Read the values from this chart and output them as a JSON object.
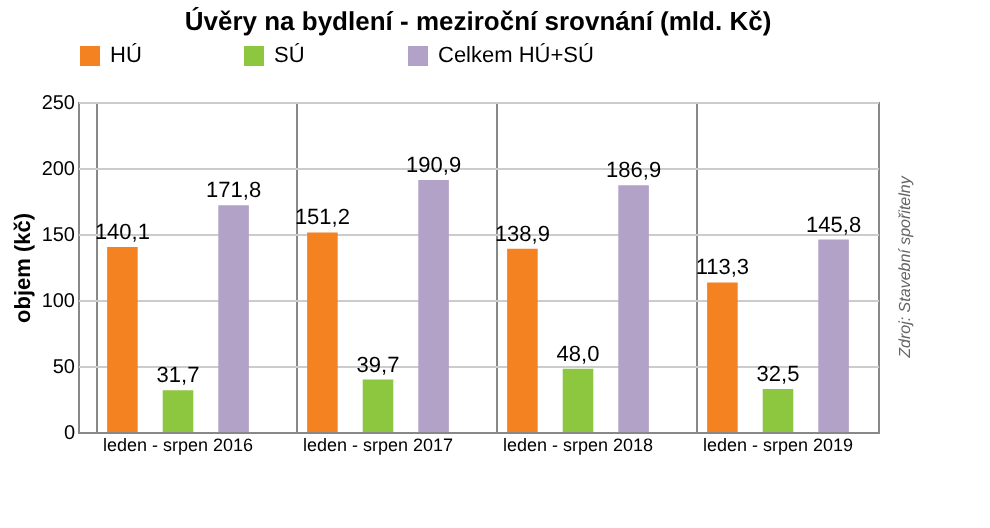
{
  "chart_data": {
    "type": "bar",
    "title": "Úvěry na bydlení - meziroční srovnání (mld. Kč)",
    "ylabel": "objem (kč)",
    "categories": [
      "leden - srpen 2016",
      "leden - srpen 2017",
      "leden - srpen 2018",
      "leden - srpen 2019"
    ],
    "series": [
      {
        "name": "HÚ",
        "color": "#f58220",
        "values": [
          140.1,
          151.2,
          138.9,
          113.3
        ]
      },
      {
        "name": "SÚ",
        "color": "#8dc63f",
        "values": [
          31.7,
          39.7,
          48.0,
          32.5
        ]
      },
      {
        "name": "Celkem HÚ+SÚ",
        "color": "#b3a2c7",
        "values": [
          171.8,
          190.9,
          186.9,
          145.8
        ]
      }
    ],
    "value_labels": [
      [
        "140,1",
        "151,2",
        "138,9",
        "113,3"
      ],
      [
        "31,7",
        "39,7",
        "48,0",
        "32,5"
      ],
      [
        "171,8",
        "190,9",
        "186,9",
        "145,8"
      ]
    ],
    "ylim": [
      0,
      250
    ],
    "yticks": [
      0,
      50,
      100,
      150,
      200,
      250
    ],
    "grid": true,
    "legend": "top",
    "annotations": [
      "Zdroj: Stavební spořitelny"
    ]
  }
}
